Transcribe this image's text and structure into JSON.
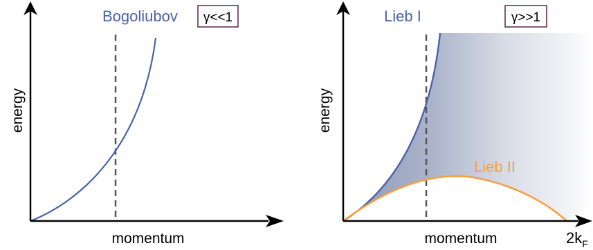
{
  "colors": {
    "blue": "#4a62a8",
    "orange": "#f5a040",
    "axis": "#000000",
    "dashed": "#555555",
    "box_border": "#5a2050",
    "shade_dark": "#8a96b4"
  },
  "left_panel": {
    "ylabel": "energy",
    "xlabel": "momentum",
    "curve_label": "Bogoliubov",
    "regime": "γ<<1"
  },
  "right_panel": {
    "ylabel": "energy",
    "xlabel": "momentum",
    "upper_label": "Lieb I",
    "lower_label": "Lieb II",
    "regime": "γ>>1",
    "edge_label_main": "2k",
    "edge_label_sub": "F"
  }
}
